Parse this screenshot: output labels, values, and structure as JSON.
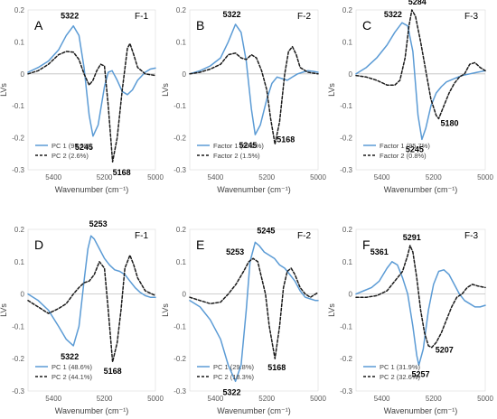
{
  "chart_data": [
    {
      "type": "line",
      "panel": "A",
      "tag": "F-1",
      "xlabel": "Wavenumber (cm⁻¹)",
      "ylabel": "LVs",
      "xlim": [
        5500,
        5000
      ],
      "ylim": [
        -0.3,
        0.2
      ],
      "xticks": [
        5400,
        5200,
        5000
      ],
      "xtick_labels": [
        "5400",
        "5200",
        "5000"
      ],
      "yticks": [
        -0.3,
        -0.2,
        -0.1,
        0,
        0.1,
        0.2
      ],
      "ytick_labels": [
        "-0.3",
        "-0.2",
        "-0.1",
        "0",
        "0.1",
        "0.2"
      ],
      "legend_position": "bottom-left",
      "series": [
        {
          "name": "PC 1 (95.5%)",
          "style": "solid",
          "color": "#5b9bd5",
          "x": [
            5500,
            5460,
            5420,
            5380,
            5350,
            5322,
            5300,
            5280,
            5260,
            5245,
            5225,
            5200,
            5185,
            5170,
            5150,
            5130,
            5110,
            5090,
            5070,
            5040,
            5020,
            5000
          ],
          "y": [
            0.005,
            0.02,
            0.04,
            0.075,
            0.12,
            0.15,
            0.12,
            0.02,
            -0.13,
            -0.195,
            -0.16,
            -0.04,
            0.005,
            0.01,
            -0.02,
            -0.055,
            -0.065,
            -0.05,
            -0.02,
            0.005,
            0.015,
            0.018
          ]
        },
        {
          "name": "PC 2 (2.6%)",
          "style": "dashed",
          "color": "#1a1a1a",
          "x": [
            5500,
            5460,
            5420,
            5380,
            5350,
            5322,
            5300,
            5280,
            5260,
            5245,
            5230,
            5215,
            5200,
            5185,
            5168,
            5150,
            5130,
            5110,
            5100,
            5085,
            5070,
            5040,
            5000
          ],
          "y": [
            0.0,
            0.01,
            0.03,
            0.06,
            0.07,
            0.068,
            0.045,
            0.0,
            -0.035,
            -0.02,
            0.01,
            0.03,
            0.025,
            -0.1,
            -0.275,
            -0.2,
            -0.05,
            0.08,
            0.095,
            0.06,
            0.02,
            0.0,
            -0.005
          ]
        }
      ],
      "annotations": [
        {
          "text": "5322",
          "x": 5322,
          "y": 0.15
        },
        {
          "text": "5245",
          "x": 5245,
          "y": -0.195
        },
        {
          "text": "5168",
          "x": 5168,
          "y": -0.275
        }
      ]
    },
    {
      "type": "line",
      "panel": "B",
      "tag": "F-2",
      "xlabel": "Wavenumber (cm⁻¹)",
      "ylabel": "LVs",
      "xlim": [
        5500,
        5000
      ],
      "ylim": [
        -0.3,
        0.2
      ],
      "xticks": [
        5400,
        5200,
        5000
      ],
      "xtick_labels": [
        "5400",
        "5200",
        "5000"
      ],
      "yticks": [
        -0.3,
        -0.2,
        -0.1,
        0,
        0.1,
        0.2
      ],
      "ytick_labels": [
        "-0.3",
        "-0.2",
        "-0.1",
        "0",
        "0.1",
        "0.2"
      ],
      "legend_position": "bottom-left",
      "series": [
        {
          "name": "Factor 1 (90.2%)",
          "style": "solid",
          "color": "#5b9bd5",
          "x": [
            5500,
            5460,
            5420,
            5380,
            5350,
            5322,
            5300,
            5280,
            5260,
            5245,
            5225,
            5200,
            5180,
            5160,
            5140,
            5120,
            5100,
            5080,
            5060,
            5040,
            5020,
            5000
          ],
          "y": [
            0.0,
            0.01,
            0.025,
            0.05,
            0.1,
            0.155,
            0.13,
            0.04,
            -0.11,
            -0.19,
            -0.16,
            -0.08,
            -0.03,
            -0.01,
            -0.015,
            -0.02,
            -0.01,
            0.0,
            0.005,
            0.01,
            0.008,
            0.005
          ]
        },
        {
          "name": "Factor 2 (1.5%)",
          "style": "dashed",
          "color": "#1a1a1a",
          "x": [
            5500,
            5460,
            5420,
            5380,
            5350,
            5322,
            5300,
            5280,
            5260,
            5240,
            5220,
            5200,
            5185,
            5168,
            5150,
            5130,
            5115,
            5100,
            5085,
            5070,
            5040,
            5000
          ],
          "y": [
            0.0,
            0.005,
            0.015,
            0.03,
            0.06,
            0.065,
            0.05,
            0.045,
            0.06,
            0.05,
            0.01,
            -0.05,
            -0.14,
            -0.22,
            -0.15,
            0.0,
            0.07,
            0.085,
            0.06,
            0.02,
            0.005,
            0.0
          ]
        }
      ],
      "annotations": [
        {
          "text": "5322",
          "x": 5322,
          "y": 0.155
        },
        {
          "text": "5245",
          "x": 5245,
          "y": -0.19
        },
        {
          "text": "5168",
          "x": 5168,
          "y": -0.22
        }
      ]
    },
    {
      "type": "line",
      "panel": "C",
      "tag": "F-3",
      "xlabel": "Wavenumber (cm⁻¹)",
      "ylabel": "LVs",
      "xlim": [
        5500,
        5000
      ],
      "ylim": [
        -0.3,
        0.2
      ],
      "xticks": [
        5400,
        5200,
        5000
      ],
      "xtick_labels": [
        "5400",
        "5200",
        "5000"
      ],
      "yticks": [
        -0.3,
        -0.2,
        -0.1,
        0,
        0.1,
        0.2
      ],
      "ytick_labels": [
        "-0.3",
        "-0.2",
        "-0.1",
        "0",
        "0.1",
        "0.2"
      ],
      "legend_position": "bottom-left",
      "series": [
        {
          "name": "Factor 1 (95.7%)",
          "style": "solid",
          "color": "#5b9bd5",
          "x": [
            5500,
            5460,
            5420,
            5380,
            5350,
            5322,
            5300,
            5280,
            5260,
            5245,
            5230,
            5210,
            5190,
            5170,
            5150,
            5120,
            5090,
            5060,
            5030,
            5000
          ],
          "y": [
            0.0,
            0.02,
            0.05,
            0.09,
            0.13,
            0.16,
            0.15,
            0.07,
            -0.13,
            -0.205,
            -0.17,
            -0.1,
            -0.06,
            -0.04,
            -0.025,
            -0.015,
            -0.005,
            0.0,
            0.005,
            0.01
          ]
        },
        {
          "name": "Factor 2 (0.8%)",
          "style": "dashed",
          "color": "#1a1a1a",
          "x": [
            5500,
            5460,
            5420,
            5380,
            5350,
            5330,
            5310,
            5295,
            5284,
            5270,
            5250,
            5230,
            5210,
            5190,
            5180,
            5160,
            5140,
            5120,
            5100,
            5080,
            5060,
            5040,
            5020,
            5000
          ],
          "y": [
            -0.005,
            -0.01,
            -0.02,
            -0.035,
            -0.035,
            -0.02,
            0.05,
            0.15,
            0.2,
            0.18,
            0.1,
            0.01,
            -0.08,
            -0.13,
            -0.14,
            -0.1,
            -0.06,
            -0.03,
            -0.01,
            0.0,
            0.03,
            0.035,
            0.02,
            0.01
          ]
        }
      ],
      "annotations": [
        {
          "text": "5322",
          "x": 5322,
          "y": 0.16
        },
        {
          "text": "5284",
          "x": 5284,
          "y": 0.2
        },
        {
          "text": "5245",
          "x": 5245,
          "y": -0.205
        },
        {
          "text": "5180",
          "x": 5180,
          "y": -0.14
        }
      ]
    },
    {
      "type": "line",
      "panel": "D",
      "tag": "F-1",
      "xlabel": "Wavenumber (cm⁻¹)",
      "ylabel": "LVs",
      "xlim": [
        5500,
        5000
      ],
      "ylim": [
        -0.3,
        0.2
      ],
      "xticks": [
        5400,
        5200,
        5000
      ],
      "xtick_labels": [
        "5400",
        "5200",
        "5000"
      ],
      "yticks": [
        -0.3,
        -0.2,
        -0.1,
        0,
        0.1,
        0.2
      ],
      "ytick_labels": [
        "-0.3",
        "-0.2",
        "-0.1",
        "0",
        "0.1",
        "0.2"
      ],
      "legend_position": "bottom-left",
      "series": [
        {
          "name": "PC 1 (48.6%)",
          "style": "solid",
          "color": "#5b9bd5",
          "x": [
            5500,
            5460,
            5420,
            5380,
            5350,
            5322,
            5300,
            5280,
            5265,
            5253,
            5240,
            5220,
            5200,
            5180,
            5160,
            5140,
            5120,
            5100,
            5080,
            5060,
            5040,
            5020,
            5000
          ],
          "y": [
            0.0,
            -0.02,
            -0.05,
            -0.1,
            -0.14,
            -0.16,
            -0.1,
            0.04,
            0.14,
            0.18,
            0.17,
            0.14,
            0.11,
            0.09,
            0.075,
            0.07,
            0.06,
            0.04,
            0.02,
            0.005,
            -0.005,
            -0.01,
            -0.01
          ]
        },
        {
          "name": "PC 2 (44.1%)",
          "style": "dashed",
          "color": "#1a1a1a",
          "x": [
            5500,
            5460,
            5420,
            5380,
            5350,
            5322,
            5300,
            5280,
            5260,
            5240,
            5220,
            5200,
            5185,
            5168,
            5150,
            5135,
            5120,
            5100,
            5085,
            5070,
            5040,
            5000
          ],
          "y": [
            -0.02,
            -0.04,
            -0.06,
            -0.045,
            -0.03,
            0.0,
            0.02,
            0.035,
            0.04,
            0.06,
            0.1,
            0.08,
            -0.05,
            -0.21,
            -0.15,
            -0.05,
            0.08,
            0.12,
            0.09,
            0.05,
            0.01,
            -0.005
          ]
        }
      ],
      "annotations": [
        {
          "text": "5253",
          "x": 5253,
          "y": 0.18
        },
        {
          "text": "5322",
          "x": 5322,
          "y": -0.16
        },
        {
          "text": "5168",
          "x": 5168,
          "y": -0.21
        }
      ]
    },
    {
      "type": "line",
      "panel": "E",
      "tag": "F-2",
      "xlabel": "Wavenumber (cm⁻¹)",
      "ylabel": "LVs",
      "xlim": [
        5500,
        5000
      ],
      "ylim": [
        -0.3,
        0.2
      ],
      "xticks": [
        5400,
        5200,
        5000
      ],
      "xtick_labels": [
        "5400",
        "5200",
        "5000"
      ],
      "yticks": [
        -0.3,
        -0.2,
        -0.1,
        0,
        0.1,
        0.2
      ],
      "ytick_labels": [
        "-0.3",
        "-0.2",
        "-0.1",
        "0",
        "0.1",
        "0.2"
      ],
      "legend_position": "bottom-left",
      "series": [
        {
          "name": "PC 1 (29.8%)",
          "style": "solid",
          "color": "#5b9bd5",
          "x": [
            5500,
            5460,
            5420,
            5380,
            5350,
            5322,
            5300,
            5280,
            5265,
            5245,
            5230,
            5210,
            5190,
            5170,
            5150,
            5130,
            5110,
            5090,
            5070,
            5050,
            5030,
            5010,
            5000
          ],
          "y": [
            -0.02,
            -0.04,
            -0.08,
            -0.14,
            -0.22,
            -0.27,
            -0.22,
            -0.05,
            0.1,
            0.16,
            0.15,
            0.13,
            0.12,
            0.11,
            0.09,
            0.08,
            0.06,
            0.04,
            0.01,
            -0.01,
            -0.015,
            -0.02,
            -0.02
          ]
        },
        {
          "name": "PC 2 (18.3%)",
          "style": "dashed",
          "color": "#1a1a1a",
          "x": [
            5500,
            5460,
            5420,
            5380,
            5350,
            5320,
            5290,
            5270,
            5253,
            5235,
            5220,
            5205,
            5190,
            5168,
            5150,
            5135,
            5120,
            5105,
            5090,
            5070,
            5050,
            5030,
            5010,
            5000
          ],
          "y": [
            -0.01,
            -0.02,
            -0.03,
            -0.025,
            0.0,
            0.03,
            0.07,
            0.1,
            0.11,
            0.1,
            0.05,
            0.0,
            -0.1,
            -0.2,
            -0.1,
            0.02,
            0.07,
            0.08,
            0.06,
            0.02,
            0.0,
            -0.01,
            0.0,
            0.005
          ]
        }
      ],
      "annotations": [
        {
          "text": "5245",
          "x": 5245,
          "y": 0.16
        },
        {
          "text": "5253",
          "x": 5253,
          "y": 0.11
        },
        {
          "text": "5322",
          "x": 5322,
          "y": -0.27
        },
        {
          "text": "5168",
          "x": 5168,
          "y": -0.2
        }
      ]
    },
    {
      "type": "line",
      "panel": "F",
      "tag": "F-3",
      "xlabel": "Wavenumber (cm⁻¹)",
      "ylabel": "LVs",
      "xlim": [
        5500,
        5000
      ],
      "ylim": [
        -0.3,
        0.2
      ],
      "xticks": [
        5400,
        5200,
        5000
      ],
      "xtick_labels": [
        "5400",
        "5200",
        "5000"
      ],
      "yticks": [
        -0.3,
        -0.2,
        -0.1,
        0,
        0.1,
        0.2
      ],
      "ytick_labels": [
        "-0.3",
        "-0.2",
        "-0.1",
        "0",
        "0.1",
        "0.2"
      ],
      "legend_position": "bottom-left",
      "series": [
        {
          "name": "PC 1 (31.9%)",
          "style": "solid",
          "color": "#5b9bd5",
          "x": [
            5500,
            5470,
            5440,
            5410,
            5380,
            5361,
            5340,
            5320,
            5300,
            5280,
            5265,
            5257,
            5240,
            5220,
            5200,
            5180,
            5160,
            5140,
            5120,
            5100,
            5080,
            5060,
            5040,
            5020,
            5000
          ],
          "y": [
            0.0,
            0.01,
            0.02,
            0.04,
            0.08,
            0.1,
            0.09,
            0.05,
            0.0,
            -0.1,
            -0.19,
            -0.22,
            -0.17,
            -0.05,
            0.03,
            0.07,
            0.075,
            0.06,
            0.03,
            0.0,
            -0.02,
            -0.03,
            -0.04,
            -0.04,
            -0.035
          ]
        },
        {
          "name": "PC 2 (32.6%)",
          "style": "dashed",
          "color": "#1a1a1a",
          "x": [
            5500,
            5460,
            5420,
            5380,
            5350,
            5320,
            5300,
            5291,
            5280,
            5265,
            5250,
            5235,
            5220,
            5207,
            5190,
            5170,
            5150,
            5130,
            5110,
            5090,
            5070,
            5050,
            5030,
            5000
          ],
          "y": [
            -0.01,
            -0.01,
            -0.005,
            0.01,
            0.04,
            0.07,
            0.12,
            0.15,
            0.13,
            0.05,
            -0.05,
            -0.12,
            -0.16,
            -0.165,
            -0.15,
            -0.12,
            -0.08,
            -0.04,
            -0.01,
            0.0,
            0.02,
            0.03,
            0.025,
            0.02
          ]
        }
      ],
      "annotations": [
        {
          "text": "5361",
          "x": 5361,
          "y": 0.1
        },
        {
          "text": "5291",
          "x": 5291,
          "y": 0.15
        },
        {
          "text": "5257",
          "x": 5257,
          "y": -0.22
        },
        {
          "text": "5207",
          "x": 5207,
          "y": -0.165
        }
      ]
    }
  ]
}
